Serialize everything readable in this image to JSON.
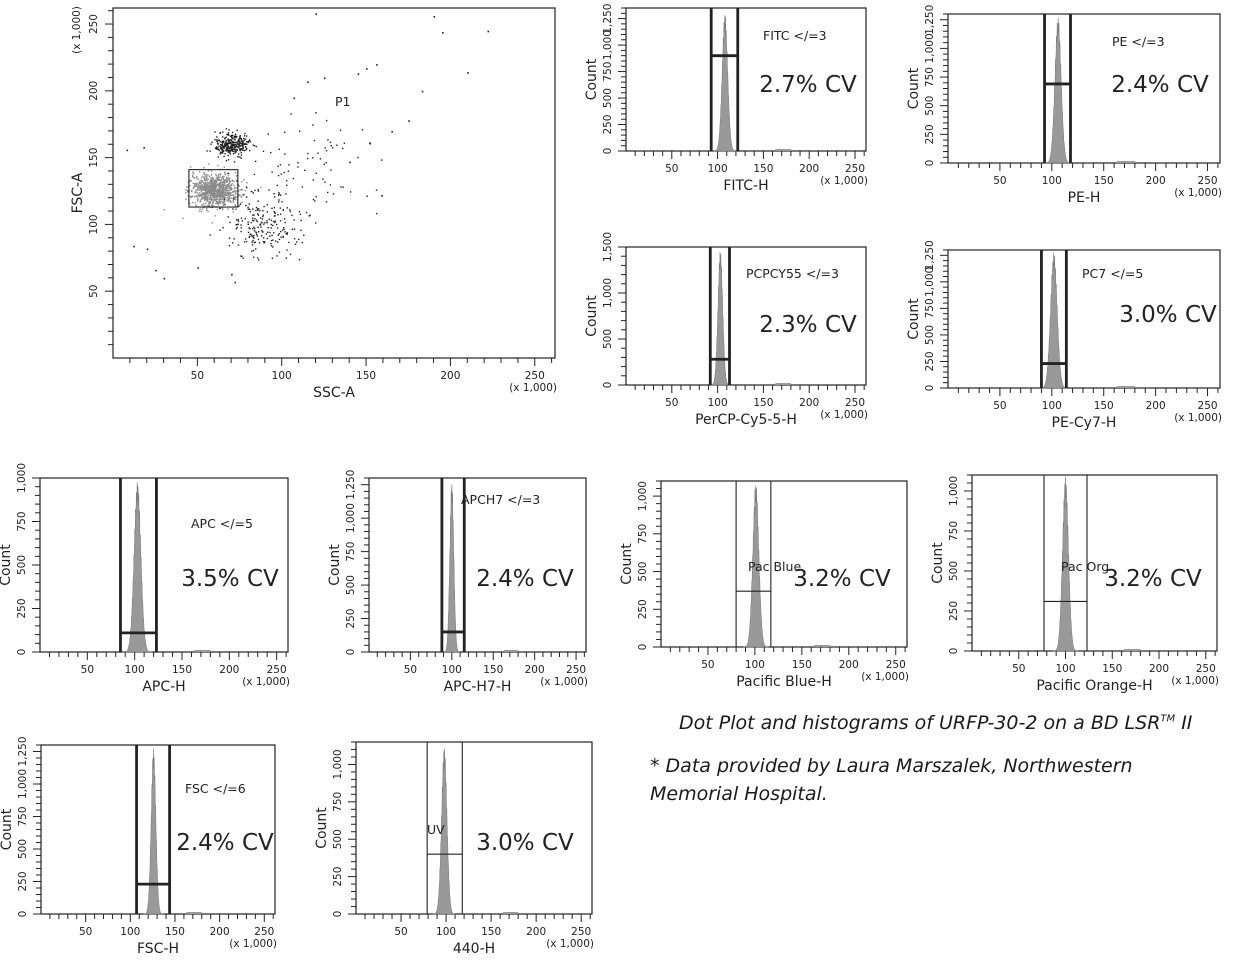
{
  "caption": {
    "title": "Dot Plot and histograms of URFP-30-2 on a BD LSR",
    "title_superscript": "TM",
    "title_suffix": " II",
    "note": "* Data provided by Laura Marszalek, Northwestern Memorial Hospital."
  },
  "colors": {
    "axis": "#222222",
    "histogram_fill": "#999999",
    "dots": "#222222",
    "dots_population": "#8a8a8a"
  },
  "chart_data": [
    {
      "id": "dot-plot",
      "type": "scatter",
      "xlabel": "SSC-A",
      "ylabel": "FSC-A",
      "x_multiplier": "(x 1,000)",
      "y_multiplier": "(x 1,000)",
      "xlim": [
        0,
        262
      ],
      "ylim": [
        0,
        262
      ],
      "xticks": [
        50,
        100,
        150,
        200,
        250
      ],
      "yticks": [
        50,
        100,
        150,
        200,
        250
      ],
      "gate_label": "P1",
      "gate": {
        "x": [
          45,
          74
        ],
        "y": [
          113,
          141
        ]
      },
      "populations": [
        {
          "name": "",
          "center": [
            60,
            126
          ],
          "spread": [
            7,
            6
          ],
          "count": 900,
          "shade": "gray"
        },
        {
          "name": "",
          "center": [
            70,
            160
          ],
          "spread": [
            5,
            4
          ],
          "count": 320,
          "shade": "dark"
        },
        {
          "name": "",
          "center": [
            88,
            100
          ],
          "spread": [
            12,
            12
          ],
          "count": 220,
          "shade": "dark"
        },
        {
          "name": "",
          "center": [
            120,
            145
          ],
          "spread": [
            25,
            18
          ],
          "count": 80,
          "shade": "dark"
        }
      ],
      "outliers": [
        [
          120,
          258
        ],
        [
          190,
          256
        ],
        [
          195,
          244
        ],
        [
          222,
          245
        ],
        [
          150,
          217
        ],
        [
          145,
          213
        ],
        [
          156,
          220
        ],
        [
          210,
          214
        ],
        [
          125,
          210
        ],
        [
          115,
          207
        ],
        [
          183,
          200
        ],
        [
          107,
          195
        ],
        [
          175,
          178
        ],
        [
          165,
          170
        ],
        [
          152,
          161
        ],
        [
          140,
          147
        ],
        [
          159,
          122
        ],
        [
          8,
          156
        ],
        [
          18,
          158
        ],
        [
          12,
          84
        ],
        [
          20,
          82
        ],
        [
          25,
          66
        ],
        [
          30,
          60
        ],
        [
          50,
          68
        ],
        [
          70,
          63
        ],
        [
          72,
          57
        ]
      ]
    },
    {
      "id": "fitc",
      "type": "area",
      "xlabel": "FITC-H",
      "ylabel": "Count",
      "x_multiplier": "(x 1,000)",
      "xlim": [
        0,
        262
      ],
      "xticks": [
        50,
        100,
        150,
        200,
        250
      ],
      "ylim": [
        0,
        1350
      ],
      "yticks": [
        0,
        250,
        500,
        750,
        1000,
        1250
      ],
      "ytick_labels": [
        "0",
        "250",
        "500",
        "750",
        "1,000",
        "1,250"
      ],
      "peak": {
        "center": 108,
        "sigma": 3.0,
        "height": 1300
      },
      "gate": {
        "label": "FITC </=3",
        "range": [
          93,
          122
        ],
        "level": 900,
        "bold": true
      },
      "cv_label": "2.7% CV"
    },
    {
      "id": "pe",
      "type": "area",
      "xlabel": "PE-H",
      "ylabel": "Count",
      "x_multiplier": "(x 1,000)",
      "xlim": [
        0,
        262
      ],
      "xticks": [
        50,
        100,
        150,
        200,
        250
      ],
      "ylim": [
        0,
        1300
      ],
      "yticks": [
        0,
        250,
        500,
        750,
        1000,
        1250
      ],
      "ytick_labels": [
        "0",
        "250",
        "500",
        "750",
        "1,000",
        "1,250"
      ],
      "peak": {
        "center": 106,
        "sigma": 3.0,
        "height": 1280
      },
      "gate": {
        "label": "PE </=3",
        "range": [
          93,
          118
        ],
        "level": 690,
        "bold": true
      },
      "cv_label": "2.4% CV"
    },
    {
      "id": "percp",
      "type": "area",
      "xlabel": "PerCP-Cy5-5-H",
      "ylabel": "Count",
      "x_multiplier": "(x 1,000)",
      "xlim": [
        0,
        262
      ],
      "xticks": [
        50,
        100,
        150,
        200,
        250
      ],
      "ylim": [
        0,
        1500
      ],
      "yticks": [
        0,
        500,
        1000,
        1500
      ],
      "ytick_labels": [
        "0",
        "500",
        "1,000",
        "1,500"
      ],
      "peak": {
        "center": 103,
        "sigma": 2.6,
        "height": 1470
      },
      "gate": {
        "label": "PCPCY55 </=3",
        "range": [
          92,
          113
        ],
        "level": 280,
        "bold": true
      },
      "cv_label": "2.3% CV"
    },
    {
      "id": "pc7",
      "type": "area",
      "xlabel": "PE-Cy7-H",
      "ylabel": "Count",
      "x_multiplier": "(x 1,000)",
      "xlim": [
        0,
        262
      ],
      "xticks": [
        50,
        100,
        150,
        200,
        250
      ],
      "ylim": [
        0,
        1300
      ],
      "yticks": [
        0,
        250,
        500,
        750,
        1000,
        1250
      ],
      "ytick_labels": [
        "0",
        "250",
        "500",
        "750",
        "1,000",
        "1,250"
      ],
      "peak": {
        "center": 102,
        "sigma": 3.2,
        "height": 1280
      },
      "gate": {
        "label": "PC7 </=5",
        "range": [
          90,
          114
        ],
        "level": 230,
        "bold": true
      },
      "cv_label": "3.0% CV"
    },
    {
      "id": "apc",
      "type": "area",
      "xlabel": "APC-H",
      "ylabel": "Count",
      "x_multiplier": "(x 1,000)",
      "xlim": [
        0,
        262
      ],
      "xticks": [
        50,
        100,
        150,
        200,
        250
      ],
      "ylim": [
        0,
        1000
      ],
      "yticks": [
        0,
        250,
        500,
        750,
        1000
      ],
      "ytick_labels": [
        "0",
        "250",
        "500",
        "750",
        "1,000"
      ],
      "peak": {
        "center": 103,
        "sigma": 3.6,
        "height": 980
      },
      "gate": {
        "label": "APC </=5",
        "range": [
          85,
          123
        ],
        "level": 110,
        "bold": true
      },
      "cv_label": "3.5% CV"
    },
    {
      "id": "apch7",
      "type": "area",
      "xlabel": "APC-H7-H",
      "ylabel": "Count",
      "x_multiplier": "(x 1,000)",
      "xlim": [
        0,
        262
      ],
      "xticks": [
        50,
        100,
        150,
        200,
        250
      ],
      "ylim": [
        0,
        1300
      ],
      "yticks": [
        0,
        250,
        500,
        750,
        1000,
        1250
      ],
      "ytick_labels": [
        "0",
        "250",
        "500",
        "750",
        "1,000",
        "1,250"
      ],
      "peak": {
        "center": 100,
        "sigma": 2.4,
        "height": 1280
      },
      "gate": {
        "label": "APCH7 </=3",
        "range": [
          88,
          115
        ],
        "level": 150,
        "bold": true
      },
      "cv_label": "2.4% CV"
    },
    {
      "id": "pacblue",
      "type": "area",
      "xlabel": "Pacific Blue-H",
      "ylabel": "Count",
      "x_multiplier": "(x 1,000)",
      "xlim": [
        0,
        262
      ],
      "xticks": [
        50,
        100,
        150,
        200,
        250
      ],
      "ylim": [
        0,
        1100
      ],
      "yticks": [
        0,
        250,
        500,
        750,
        1000
      ],
      "ytick_labels": [
        "0",
        "250",
        "500",
        "750",
        "1,000"
      ],
      "peak": {
        "center": 101,
        "sigma": 3.2,
        "height": 1090
      },
      "gate": {
        "label": "Pac Blue",
        "range": [
          80,
          117
        ],
        "level": 370,
        "bold": false
      },
      "cv_label": "3.2% CV"
    },
    {
      "id": "pacorange",
      "type": "area",
      "xlabel": "Pacific Orange-H",
      "ylabel": "Count",
      "x_multiplier": "(x 1,000)",
      "xlim": [
        0,
        262
      ],
      "xticks": [
        50,
        100,
        150,
        200,
        250
      ],
      "ylim": [
        0,
        1100
      ],
      "yticks": [
        0,
        250,
        500,
        750,
        1000
      ],
      "ytick_labels": [
        "0",
        "250",
        "500",
        "750",
        "1,000"
      ],
      "peak": {
        "center": 100,
        "sigma": 3.2,
        "height": 1090
      },
      "gate": {
        "label": "Pac Org",
        "range": [
          77,
          123
        ],
        "level": 310,
        "bold": false
      },
      "cv_label": "3.2% CV"
    },
    {
      "id": "fsc",
      "type": "area",
      "xlabel": "FSC-H",
      "ylabel": "Count",
      "x_multiplier": "(x 1,000)",
      "xlim": [
        0,
        262
      ],
      "xticks": [
        50,
        100,
        150,
        200,
        250
      ],
      "ylim": [
        0,
        1300
      ],
      "yticks": [
        0,
        250,
        500,
        750,
        1000,
        1250
      ],
      "ytick_labels": [
        "0",
        "250",
        "500",
        "750",
        "1,000",
        "1,250"
      ],
      "peak": {
        "center": 126,
        "sigma": 2.6,
        "height": 1280
      },
      "gate": {
        "label": "FSC </=6",
        "range": [
          107,
          144
        ],
        "level": 230,
        "bold": true
      },
      "cv_label": "2.4% CV"
    },
    {
      "id": "uv",
      "type": "area",
      "xlabel": "440-H",
      "ylabel": "Count",
      "x_multiplier": "(x 1,000)",
      "xlim": [
        0,
        262
      ],
      "xticks": [
        50,
        100,
        150,
        200,
        250
      ],
      "ylim": [
        0,
        1150
      ],
      "yticks": [
        0,
        250,
        500,
        750,
        1000
      ],
      "ytick_labels": [
        "0",
        "250",
        "500",
        "750",
        "1,000"
      ],
      "peak": {
        "center": 98,
        "sigma": 3.0,
        "height": 1120
      },
      "gate": {
        "label": "UV",
        "range": [
          79,
          118
        ],
        "level": 400,
        "bold": false
      },
      "cv_label": "3.0% CV"
    }
  ]
}
